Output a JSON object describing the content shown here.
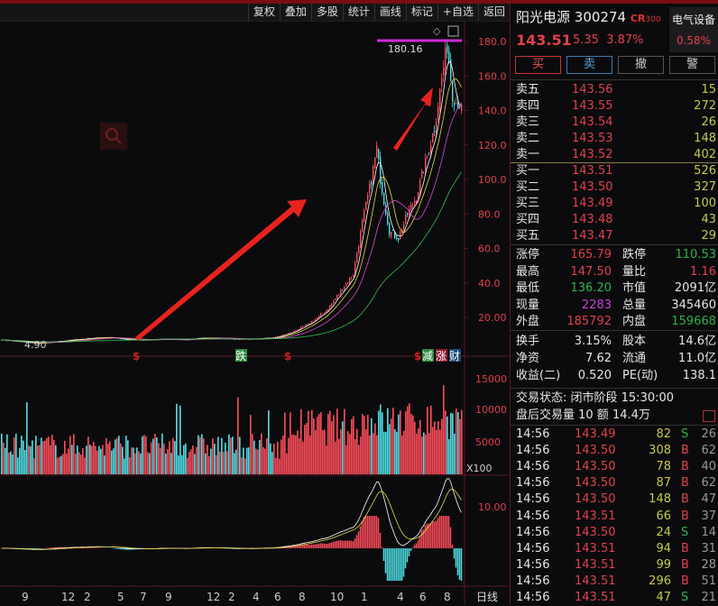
{
  "toolbar": {
    "items": [
      "复权",
      "叠加",
      "多股",
      "统计",
      "画线",
      "标记",
      "+自选",
      "返回"
    ]
  },
  "stock": {
    "name": "阳光电源",
    "code": "300274",
    "badge": "CR",
    "badge_sub": "300",
    "price": "143.51",
    "change": "5.35",
    "change_pct": "3.87%",
    "sector": "电气设备",
    "sector_pct": "0.58%"
  },
  "actions": {
    "buy": "买",
    "sell": "卖",
    "cancel": "撤",
    "alert": "警"
  },
  "asks": [
    {
      "label": "卖五",
      "price": "143.56",
      "vol": "15"
    },
    {
      "label": "卖四",
      "price": "143.55",
      "vol": "272"
    },
    {
      "label": "卖三",
      "price": "143.54",
      "vol": "26"
    },
    {
      "label": "卖二",
      "price": "143.53",
      "vol": "148"
    },
    {
      "label": "卖一",
      "price": "143.52",
      "vol": "402"
    }
  ],
  "bids": [
    {
      "label": "买一",
      "price": "143.51",
      "vol": "526"
    },
    {
      "label": "买二",
      "price": "143.50",
      "vol": "327"
    },
    {
      "label": "买三",
      "price": "143.49",
      "vol": "100"
    },
    {
      "label": "买四",
      "price": "143.48",
      "vol": "43"
    },
    {
      "label": "买五",
      "price": "143.47",
      "vol": "29"
    }
  ],
  "stats": [
    {
      "l1": "涨停",
      "v1": "165.79",
      "c1": "red",
      "l2": "跌停",
      "v2": "110.53",
      "c2": "green"
    },
    {
      "l1": "最高",
      "v1": "147.50",
      "c1": "red",
      "l2": "量比",
      "v2": "1.16",
      "c2": "red"
    },
    {
      "l1": "最低",
      "v1": "136.20",
      "c1": "green",
      "l2": "市值",
      "v2": "2091亿",
      "c2": "wht"
    },
    {
      "l1": "现量",
      "v1": "2283",
      "c1": "mag",
      "l2": "总量",
      "v2": "345460",
      "c2": "wht"
    },
    {
      "l1": "外盘",
      "v1": "185792",
      "c1": "red",
      "l2": "内盘",
      "v2": "159668",
      "c2": "green"
    }
  ],
  "fundamentals": [
    {
      "l1": "换手",
      "v1": "3.15%",
      "l2": "股本",
      "v2": "14.6亿"
    },
    {
      "l1": "净资",
      "v1": "7.62",
      "l2": "流通",
      "v2": "11.0亿"
    },
    {
      "l1": "收益(二)",
      "v1": "0.520",
      "l2": "PE(动)",
      "v2": "138.1"
    }
  ],
  "status": {
    "trade_state": "交易状态: 闭市阶段 15:30:00",
    "after_hours": "盘后交易量 10 额 14.4万"
  },
  "trades": [
    {
      "t": "14:56",
      "p": "143.49",
      "v": "82",
      "s": "S",
      "n": "26"
    },
    {
      "t": "14:56",
      "p": "143.50",
      "v": "308",
      "s": "B",
      "n": "62"
    },
    {
      "t": "14:56",
      "p": "143.50",
      "v": "78",
      "s": "B",
      "n": "40"
    },
    {
      "t": "14:56",
      "p": "143.50",
      "v": "87",
      "s": "B",
      "n": "62"
    },
    {
      "t": "14:56",
      "p": "143.50",
      "v": "148",
      "s": "B",
      "n": "47"
    },
    {
      "t": "14:56",
      "p": "143.51",
      "v": "66",
      "s": "B",
      "n": "37"
    },
    {
      "t": "14:56",
      "p": "143.50",
      "v": "24",
      "s": "S",
      "n": "14"
    },
    {
      "t": "14:56",
      "p": "143.51",
      "v": "94",
      "s": "B",
      "n": "31"
    },
    {
      "t": "14:56",
      "p": "143.51",
      "v": "99",
      "s": "B",
      "n": "28"
    },
    {
      "t": "14:56",
      "p": "143.51",
      "v": "296",
      "s": "B",
      "n": "51"
    },
    {
      "t": "14:56",
      "p": "143.51",
      "v": "47",
      "s": "S",
      "n": "21"
    }
  ],
  "chart_data": {
    "type": "candlestick",
    "price_axis": [
      "180.0",
      "160.0",
      "140.0",
      "120.0",
      "100.0",
      "80.0",
      "60.0",
      "40.0",
      "20.00"
    ],
    "price_ylim": [
      0,
      185
    ],
    "high_label": "180.16",
    "low_label": "4.90",
    "volume_axis": [
      "15000",
      "10000",
      "5000"
    ],
    "volume_unit": "X100",
    "macd_axis": [
      "10.00"
    ],
    "x_ticks": [
      "9",
      "12",
      "2",
      "5",
      "7",
      "9",
      "12",
      "2",
      "4",
      "6",
      "8",
      "10",
      "1",
      "4",
      "6",
      "8"
    ],
    "period": "日线",
    "event_markers": [
      "$",
      "跌",
      "$",
      "$",
      "减",
      "涨",
      "财"
    ],
    "approx_closes": [
      [
        0,
        7
      ],
      [
        10,
        6
      ],
      [
        20,
        5
      ],
      [
        30,
        6
      ],
      [
        40,
        7
      ],
      [
        50,
        8
      ],
      [
        60,
        8.5
      ],
      [
        70,
        7
      ],
      [
        80,
        7
      ],
      [
        90,
        7.5
      ],
      [
        100,
        7
      ],
      [
        110,
        8
      ],
      [
        120,
        8
      ],
      [
        130,
        7.5
      ],
      [
        140,
        7.5
      ],
      [
        150,
        8
      ],
      [
        160,
        11
      ],
      [
        170,
        16
      ],
      [
        180,
        24
      ],
      [
        190,
        38
      ],
      [
        195,
        45
      ],
      [
        200,
        75
      ],
      [
        205,
        100
      ],
      [
        208,
        118
      ],
      [
        210,
        100
      ],
      [
        215,
        70
      ],
      [
        220,
        66
      ],
      [
        225,
        80
      ],
      [
        230,
        90
      ],
      [
        235,
        110
      ],
      [
        240,
        130
      ],
      [
        245,
        165
      ],
      [
        247,
        178
      ],
      [
        250,
        150
      ],
      [
        252,
        145
      ],
      [
        255,
        143.5
      ]
    ],
    "colors": {
      "up": "#ff4d5a",
      "down": "#4fe0e6",
      "ma5": "#ffffff",
      "ma10": "#e8d84a",
      "ma20": "#d84ad8",
      "ma60": "#2fc04a"
    }
  }
}
